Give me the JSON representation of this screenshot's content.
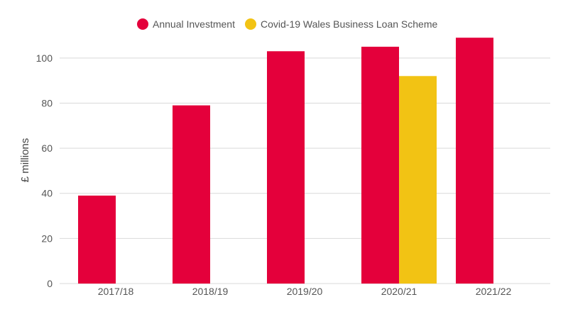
{
  "chart_data": {
    "type": "bar",
    "title": "",
    "xlabel": "",
    "ylabel": "£ millions",
    "ylim": [
      0,
      110
    ],
    "yticks": [
      0,
      20,
      40,
      60,
      80,
      100
    ],
    "grid": true,
    "legend_position": "top",
    "categories": [
      "2017/18",
      "2018/19",
      "2019/20",
      "2020/21",
      "2021/22"
    ],
    "series": [
      {
        "name": "Annual Investment",
        "color": "#e4003b",
        "values": [
          39,
          79,
          103,
          105,
          109
        ]
      },
      {
        "name": "Covid-19 Wales Business Loan Scheme",
        "color": "#f2c314",
        "values": [
          null,
          null,
          null,
          92,
          null
        ]
      }
    ]
  }
}
